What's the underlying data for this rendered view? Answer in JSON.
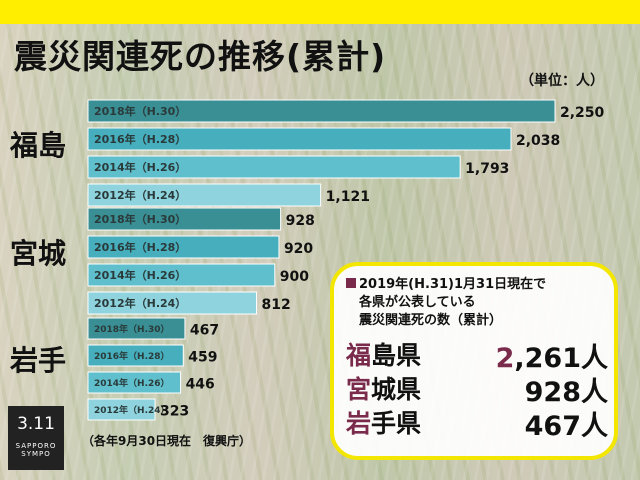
{
  "title": "震災関連死の推移(累計)",
  "unit": "（単位：人）",
  "chart_data": {
    "type": "bar",
    "orientation": "horizontal",
    "groups": [
      {
        "name": "福島",
        "bars": [
          {
            "label": "2018年（H.30）",
            "value": 2250,
            "value_label": "2,250"
          },
          {
            "label": "2016年（H.28）",
            "value": 2038,
            "value_label": "2,038"
          },
          {
            "label": "2014年（H.26）",
            "value": 1793,
            "value_label": "1,793"
          },
          {
            "label": "2012年（H.24）",
            "value": 1121,
            "value_label": "1,121"
          }
        ]
      },
      {
        "name": "宮城",
        "bars": [
          {
            "label": "2018年（H.30）",
            "value": 928,
            "value_label": "928"
          },
          {
            "label": "2016年（H.28）",
            "value": 920,
            "value_label": "920"
          },
          {
            "label": "2014年（H.26）",
            "value": 900,
            "value_label": "900"
          },
          {
            "label": "2012年（H.24）",
            "value": 812,
            "value_label": "812"
          }
        ]
      },
      {
        "name": "岩手",
        "bars": [
          {
            "label": "2018年（H.30）",
            "value": 467,
            "value_label": "467"
          },
          {
            "label": "2016年（H.28）",
            "value": 459,
            "value_label": "459"
          },
          {
            "label": "2014年（H.26）",
            "value": 446,
            "value_label": "446"
          },
          {
            "label": "2012年（H.24）",
            "value": 323,
            "value_label": "323"
          }
        ]
      }
    ],
    "colors": {
      "2018": "#3a8f94",
      "2016": "#46aebc",
      "2014": "#5fbfcc",
      "2012": "#8ed3dd"
    }
  },
  "note": "（各年9月30日現在　復興庁）",
  "logo": {
    "main": "3.11",
    "sub1": "SAPPORO",
    "sub2": "SYMPO"
  },
  "summary": {
    "heading_line1": "2019年(H.31)1月31日現在で",
    "heading_line2": "各県が公表している",
    "heading_line3": "震災関連死の数（累計）",
    "rows": [
      {
        "pref_first": "福",
        "pref_rest": "島県",
        "num_first": "2",
        "num_rest": ",261人"
      },
      {
        "pref_first": "宮",
        "pref_rest": "城県",
        "num_first": "",
        "num_rest": "928人"
      },
      {
        "pref_first": "岩",
        "pref_rest": "手県",
        "num_first": "",
        "num_rest": "467人"
      }
    ]
  }
}
